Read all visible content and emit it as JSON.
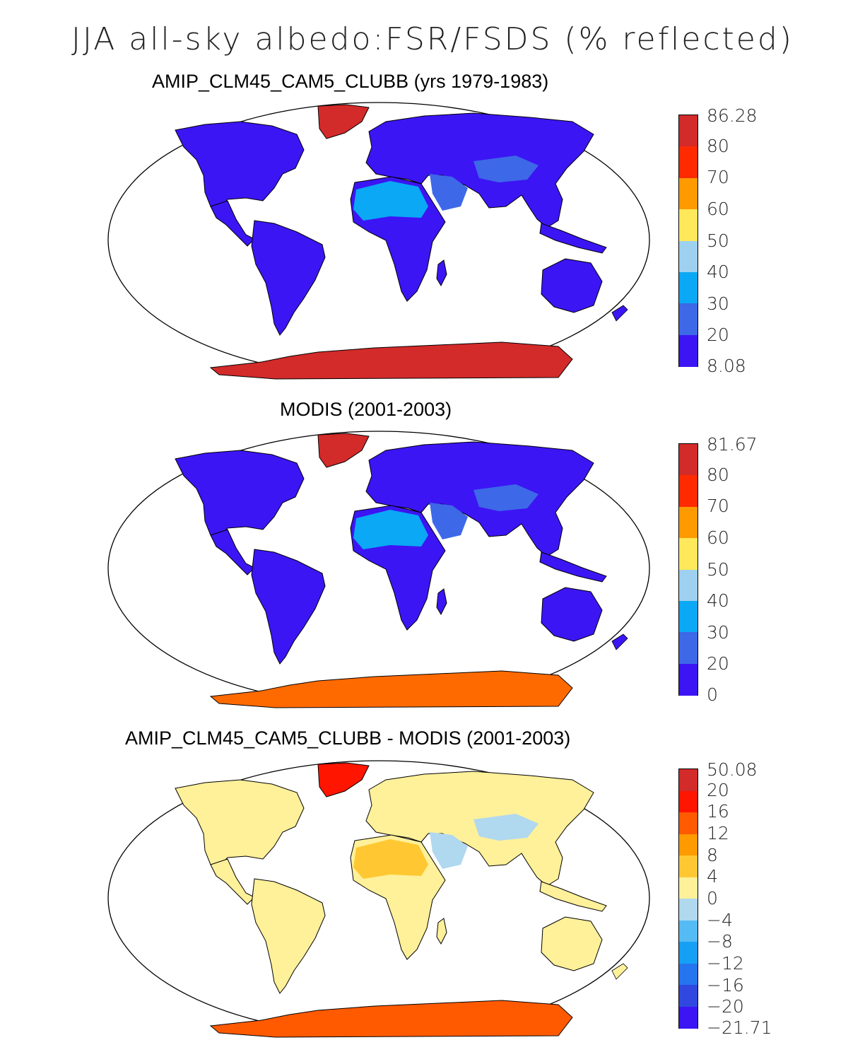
{
  "title": "JJA all-sky albedo:FSR/FSDS (% reflected)",
  "panels": [
    {
      "title": "AMIP_CLM45_CAM5_CLUBB (yrs 1979-1983)",
      "colorbar": {
        "labels": [
          "86.28",
          "80",
          "70",
          "60",
          "50",
          "40",
          "30",
          "20",
          "8.08"
        ],
        "colors": [
          "#d32a2a",
          "#ff2a00",
          "#ff9a00",
          "#ffe85a",
          "#9ed0ef",
          "#0aa8f5",
          "#3d68e8",
          "#3c15f4"
        ]
      },
      "fills": {
        "land": "#3c15f4",
        "desert": "#3d68e8",
        "sahara": "#0aa8f5",
        "greenland": "#d32a2a",
        "antarctica": "#d32a2a"
      }
    },
    {
      "title": "MODIS (2001-2003)",
      "colorbar": {
        "labels": [
          "81.67",
          "80",
          "70",
          "60",
          "50",
          "40",
          "30",
          "20",
          "0"
        ],
        "colors": [
          "#d32a2a",
          "#ff2a00",
          "#ff9a00",
          "#ffe85a",
          "#9ed0ef",
          "#0aa8f5",
          "#3d68e8",
          "#3c15f4"
        ]
      },
      "fills": {
        "land": "#3c15f4",
        "desert": "#3d68e8",
        "sahara": "#0aa8f5",
        "greenland": "#d32a2a",
        "antarctica": "#ff6a00"
      }
    },
    {
      "title": "AMIP_CLM45_CAM5_CLUBB - MODIS (2001-2003)",
      "colorbar": {
        "labels": [
          "50.08",
          "20",
          "16",
          "12",
          "8",
          "4",
          "0",
          "−4",
          "−8",
          "−12",
          "−16",
          "−20",
          "−21.71"
        ],
        "colors": [
          "#d32a2a",
          "#ff1500",
          "#ff5a00",
          "#ff9a00",
          "#ffc832",
          "#fff09a",
          "#b0d8ef",
          "#55bbf5",
          "#15a0f5",
          "#2575ee",
          "#3048e0",
          "#3c15f4"
        ]
      },
      "fills": {
        "land": "#fff09a",
        "desert": "#b0d8ef",
        "sahara": "#ffc832",
        "greenland": "#ff1500",
        "antarctica": "#ff5a00"
      }
    }
  ]
}
